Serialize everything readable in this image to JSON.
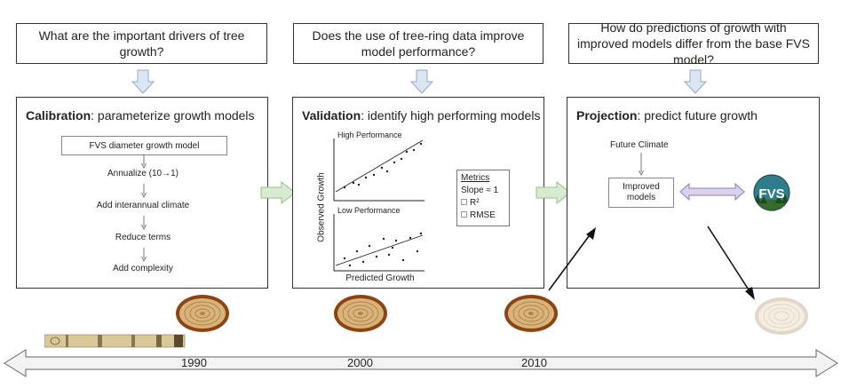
{
  "questions": {
    "q1": "What are the important drivers of tree growth?",
    "q2": "Does the use of tree-ring data improve model performance?",
    "q3": "How do predictions of growth with improved models differ from the base FVS model?"
  },
  "calibration": {
    "title_bold": "Calibration",
    "title_rest": ": parameterize growth models",
    "model_box": "FVS diameter growth model",
    "steps": [
      "Annualize (10→1)",
      "Add interannual climate",
      "Reduce terms",
      "Add complexity"
    ]
  },
  "validation": {
    "title_bold": "Validation",
    "title_rest": ": identify high performing models",
    "high_label": "High Performance",
    "low_label": "Low Performance",
    "y_axis": "Observed Growth",
    "x_axis": "Predicted Growth",
    "metrics_title": "Metrics",
    "metric_slope": "Slope ≈ 1",
    "metric_r2": "R²",
    "metric_rmse": "RMSE"
  },
  "projection": {
    "title_bold": "Projection",
    "title_rest": ": predict future growth",
    "future_climate": "Future Climate",
    "improved_models": "Improved models",
    "fvs_logo": "FVS"
  },
  "timeline": {
    "years": [
      "1990",
      "2000",
      "2010"
    ]
  },
  "colors": {
    "down_arrow_fill": "#dce6f2",
    "down_arrow_stroke": "#8eaacb",
    "right_arrow_fill": "#d9ead3",
    "right_arrow_stroke": "#93c47d",
    "double_arrow_fill": "#d9d2e9",
    "double_arrow_stroke": "#8e7cc3",
    "ring_outer": "#8b4513",
    "ring_inner": "#d2a86a"
  }
}
